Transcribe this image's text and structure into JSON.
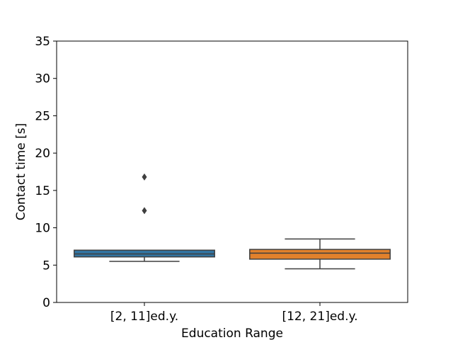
{
  "chart_data": {
    "type": "box",
    "title": "",
    "xlabel": "Education Range",
    "ylabel": "Contact time [s]",
    "ylim": [
      0,
      35
    ],
    "yticks": [
      0,
      5,
      10,
      15,
      20,
      25,
      30,
      35
    ],
    "grid": false,
    "categories": [
      "[2, 11]ed.y.",
      "[12, 21]ed.y."
    ],
    "boxes": [
      {
        "category": "[2, 11]ed.y.",
        "color": "#3274a1",
        "whisker_low": 5.5,
        "q1": 6.1,
        "median": 6.5,
        "q3": 7.0,
        "whisker_high": 7.0,
        "outliers": [
          12.3,
          16.8
        ]
      },
      {
        "category": "[12, 21]ed.y.",
        "color": "#e1812c",
        "whisker_low": 4.5,
        "q1": 5.8,
        "median": 6.6,
        "q3": 7.1,
        "whisker_high": 8.5,
        "outliers": []
      }
    ]
  }
}
